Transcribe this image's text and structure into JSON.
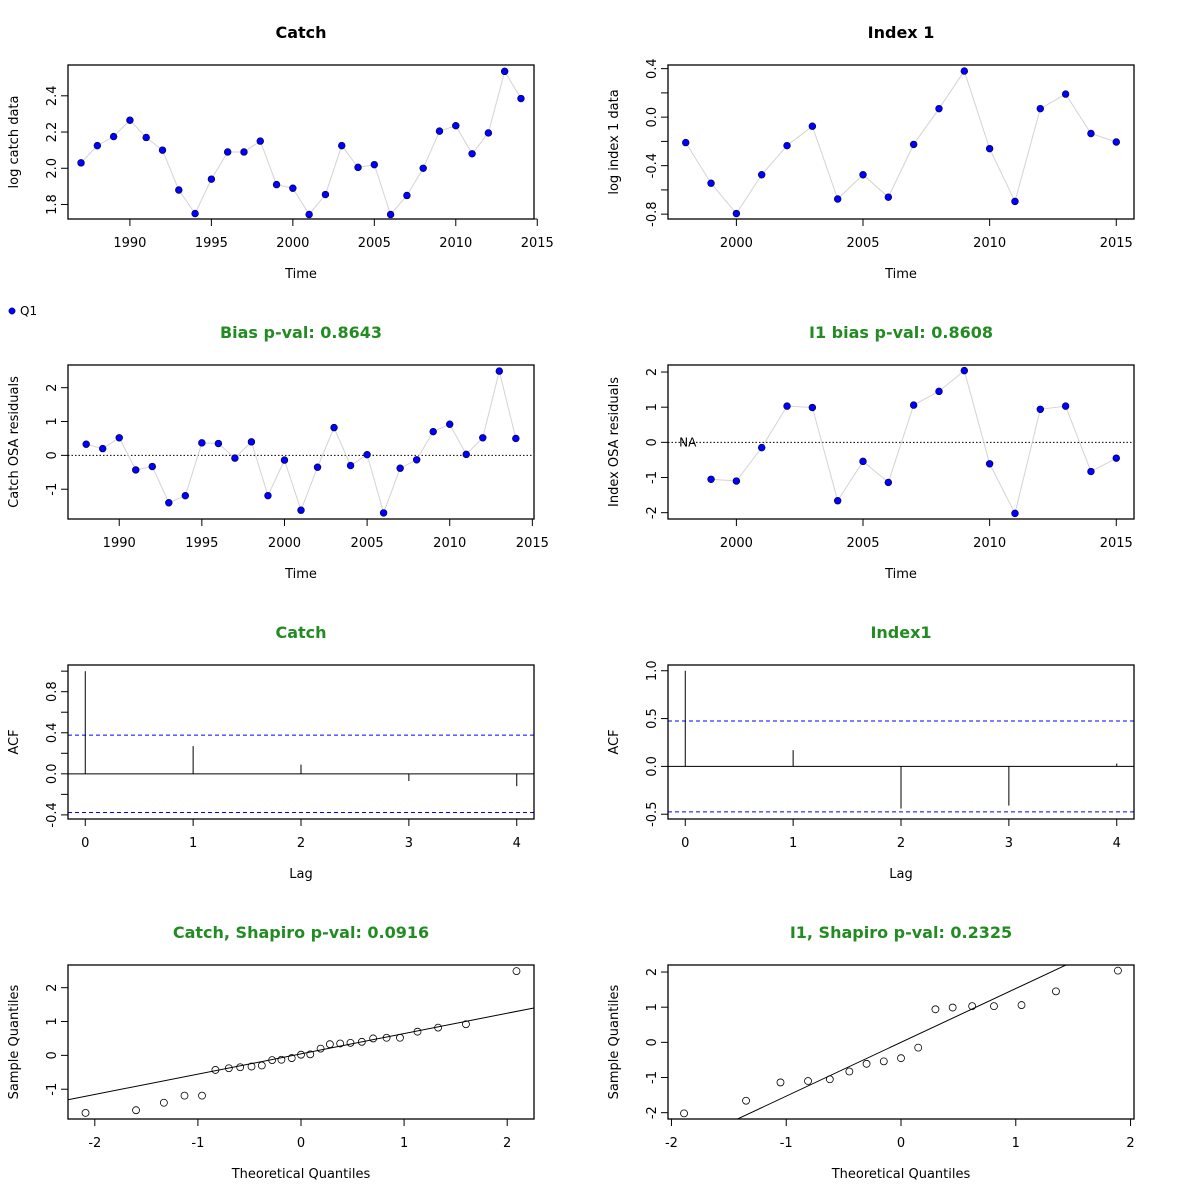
{
  "legend": {
    "symbol": "filled-circle",
    "label": "Q1",
    "color": "#0000FF"
  },
  "colors": {
    "point_fill": "#0000FF",
    "series_line": "#D3D3D3",
    "title_green": "#228B22",
    "ci_line": "#0000FF"
  },
  "chart_data": [
    {
      "id": "catch-data",
      "type": "line",
      "title": "Catch",
      "title_color": "#000000",
      "xlabel": "Time",
      "ylabel": "log catch data",
      "xlim": [
        1986.2,
        2014.8
      ],
      "ylim": [
        1.72,
        2.57
      ],
      "xticks": [
        1990,
        1995,
        2000,
        2005,
        2010,
        2015
      ],
      "yticks": [
        1.8,
        2.0,
        2.2,
        2.4
      ],
      "ytick_labels": [
        "1.8",
        "2.0",
        "2.2",
        "2.4"
      ],
      "x": [
        1987,
        1988,
        1989,
        1990,
        1991,
        1992,
        1993,
        1994,
        1995,
        1996,
        1997,
        1998,
        1999,
        2000,
        2001,
        2002,
        2003,
        2004,
        2005,
        2006,
        2007,
        2008,
        2009,
        2010,
        2011,
        2012,
        2013,
        2014
      ],
      "values": [
        2.03,
        2.125,
        2.175,
        2.265,
        2.17,
        2.1,
        1.88,
        1.75,
        1.94,
        2.09,
        2.09,
        2.15,
        1.91,
        1.89,
        1.745,
        1.855,
        2.125,
        2.005,
        2.02,
        1.745,
        1.85,
        2.0,
        2.205,
        2.235,
        2.08,
        2.195,
        2.535,
        2.385
      ]
    },
    {
      "id": "index1-data",
      "type": "line",
      "title": "Index 1",
      "title_color": "#000000",
      "xlabel": "Time",
      "ylabel": "log index 1 data",
      "xlim": [
        1997.3,
        2015.7
      ],
      "ylim": [
        -0.84,
        0.43
      ],
      "xticks": [
        2000,
        2005,
        2010,
        2015
      ],
      "yticks": [
        -0.8,
        -0.6,
        -0.4,
        -0.2,
        0.0,
        0.2,
        0.4
      ],
      "ytick_labels": [
        "-0.8",
        "",
        "-0.4",
        "",
        "0.0",
        "",
        "0.4"
      ],
      "x": [
        1998,
        1999,
        2000,
        2001,
        2002,
        2003,
        2004,
        2005,
        2006,
        2007,
        2008,
        2009,
        2010,
        2011,
        2012,
        2013,
        2014,
        2015
      ],
      "values": [
        -0.21,
        -0.545,
        -0.795,
        -0.475,
        -0.235,
        -0.075,
        -0.675,
        -0.475,
        -0.66,
        -0.225,
        0.07,
        0.38,
        -0.26,
        -0.695,
        0.07,
        0.19,
        -0.135,
        -0.205
      ]
    },
    {
      "id": "catch-osa",
      "type": "line",
      "title": "Bias p-val: 0.8643",
      "title_color": "#228B22",
      "xlabel": "Time",
      "ylabel": "Catch OSA residuals",
      "xlim": [
        1986.9,
        2015.1
      ],
      "ylim": [
        -1.88,
        2.67
      ],
      "xticks": [
        1990,
        1995,
        2000,
        2005,
        2010,
        2015
      ],
      "yticks": [
        -1,
        0,
        1,
        2
      ],
      "ytick_labels": [
        "-1",
        "0",
        "1",
        "2"
      ],
      "reference_line": 0,
      "x": [
        1988,
        1989,
        1990,
        1991,
        1992,
        1993,
        1994,
        1995,
        1996,
        1997,
        1998,
        1999,
        2000,
        2001,
        2002,
        2003,
        2004,
        2005,
        2006,
        2007,
        2008,
        2009,
        2010,
        2011,
        2012,
        2013,
        2014
      ],
      "values": [
        0.33,
        0.2,
        0.52,
        -0.43,
        -0.33,
        -1.4,
        -1.19,
        0.37,
        0.35,
        -0.08,
        0.4,
        -1.19,
        -0.14,
        -1.62,
        -0.35,
        0.82,
        -0.3,
        0.02,
        -1.7,
        -0.38,
        -0.13,
        0.7,
        0.92,
        0.03,
        0.52,
        2.49,
        0.5
      ]
    },
    {
      "id": "index1-osa",
      "type": "line",
      "title": "I1 bias p-val: 0.8608",
      "title_color": "#228B22",
      "xlabel": "Time",
      "ylabel": "Index OSA residuals",
      "xlim": [
        1997.3,
        2015.7
      ],
      "ylim": [
        -2.18,
        2.2
      ],
      "xticks": [
        2000,
        2005,
        2010,
        2015
      ],
      "yticks": [
        -2,
        -1,
        0,
        1,
        2
      ],
      "ytick_labels": [
        "-2",
        "-1",
        "0",
        "1",
        "2"
      ],
      "reference_line": 0,
      "na_annotation": {
        "x": 1998,
        "label": "NA"
      },
      "x": [
        1999,
        2000,
        2001,
        2002,
        2003,
        2004,
        2005,
        2006,
        2007,
        2008,
        2009,
        2010,
        2011,
        2012,
        2013,
        2014,
        2015
      ],
      "values": [
        -1.05,
        -1.1,
        -0.15,
        1.03,
        0.99,
        -1.66,
        -0.54,
        -1.14,
        1.06,
        1.45,
        2.04,
        -0.61,
        -2.02,
        0.94,
        1.03,
        -0.83,
        -0.45
      ]
    },
    {
      "id": "catch-acf",
      "type": "bar",
      "subtype": "acf",
      "title": "Catch",
      "title_color": "#228B22",
      "xlabel": "Lag",
      "ylabel": "ACF",
      "xlim": [
        -0.16,
        4.16
      ],
      "ylim": [
        -0.44,
        1.06
      ],
      "xticks": [
        0,
        1,
        2,
        3,
        4
      ],
      "yticks": [
        -0.4,
        -0.2,
        0.0,
        0.2,
        0.4,
        0.6,
        0.8,
        1.0
      ],
      "ytick_labels": [
        "-0.4",
        "",
        "0.0",
        "",
        "0.4",
        "",
        "0.8",
        ""
      ],
      "categories": [
        0,
        1,
        2,
        3,
        4
      ],
      "values": [
        1.0,
        0.27,
        0.09,
        -0.07,
        -0.12
      ],
      "ci": 0.377
    },
    {
      "id": "index1-acf",
      "type": "bar",
      "subtype": "acf",
      "title": "Index1",
      "title_color": "#228B22",
      "xlabel": "Lag",
      "ylabel": "ACF",
      "xlim": [
        -0.16,
        4.16
      ],
      "ylim": [
        -0.55,
        1.06
      ],
      "xticks": [
        0,
        1,
        2,
        3,
        4
      ],
      "yticks": [
        -0.5,
        0.0,
        0.5,
        1.0
      ],
      "ytick_labels": [
        "-0.5",
        "0.0",
        "0.5",
        "1.0"
      ],
      "categories": [
        0,
        1,
        2,
        3,
        4
      ],
      "values": [
        1.0,
        0.17,
        -0.44,
        -0.41,
        0.03
      ],
      "ci": 0.475
    },
    {
      "id": "catch-qq",
      "type": "scatter",
      "subtype": "qq",
      "title": "Catch, Shapiro p-val: 0.0916",
      "title_color": "#228B22",
      "xlabel": "Theoretical Quantiles",
      "ylabel": "Sample Quantiles",
      "xlim": [
        -2.26,
        2.26
      ],
      "ylim": [
        -1.88,
        2.67
      ],
      "xticks": [
        -2,
        -1,
        0,
        1,
        2
      ],
      "yticks": [
        -1,
        0,
        1,
        2
      ],
      "ytick_labels": [
        "-1",
        "0",
        "1",
        "2"
      ],
      "x": [
        -2.09,
        -1.6,
        -1.33,
        -1.13,
        -0.96,
        -0.83,
        -0.7,
        -0.59,
        -0.48,
        -0.38,
        -0.28,
        -0.19,
        -0.09,
        0.0,
        0.09,
        0.19,
        0.28,
        0.38,
        0.48,
        0.59,
        0.7,
        0.83,
        0.96,
        1.13,
        1.33,
        1.6,
        2.09
      ],
      "y": [
        -1.7,
        -1.62,
        -1.4,
        -1.19,
        -1.19,
        -0.43,
        -0.38,
        -0.35,
        -0.33,
        -0.3,
        -0.14,
        -0.13,
        -0.08,
        0.02,
        0.03,
        0.2,
        0.33,
        0.35,
        0.37,
        0.4,
        0.5,
        0.52,
        0.52,
        0.7,
        0.82,
        0.92,
        2.49
      ],
      "qqline": {
        "slope": 0.6,
        "intercept": 0.045
      }
    },
    {
      "id": "index1-qq",
      "type": "scatter",
      "subtype": "qq",
      "title": "I1, Shapiro p-val: 0.2325",
      "title_color": "#228B22",
      "xlabel": "Theoretical Quantiles",
      "ylabel": "Sample Quantiles",
      "xlim": [
        -2.03,
        2.03
      ],
      "ylim": [
        -2.18,
        2.2
      ],
      "xticks": [
        -2,
        -1,
        0,
        1,
        2
      ],
      "yticks": [
        -2,
        -1,
        0,
        1,
        2
      ],
      "ytick_labels": [
        "-2",
        "-1",
        "0",
        "1",
        "2"
      ],
      "x": [
        -1.89,
        -1.35,
        -1.05,
        -0.81,
        -0.62,
        -0.45,
        -0.3,
        -0.15,
        0.0,
        0.15,
        0.3,
        0.45,
        0.62,
        0.81,
        1.05,
        1.35,
        1.89
      ],
      "y": [
        -2.02,
        -1.66,
        -1.14,
        -1.1,
        -1.05,
        -0.83,
        -0.61,
        -0.54,
        -0.45,
        -0.15,
        0.94,
        0.99,
        1.03,
        1.03,
        1.06,
        1.45,
        2.04
      ],
      "qqline": {
        "slope": 1.53,
        "intercept": 0.0
      }
    }
  ]
}
